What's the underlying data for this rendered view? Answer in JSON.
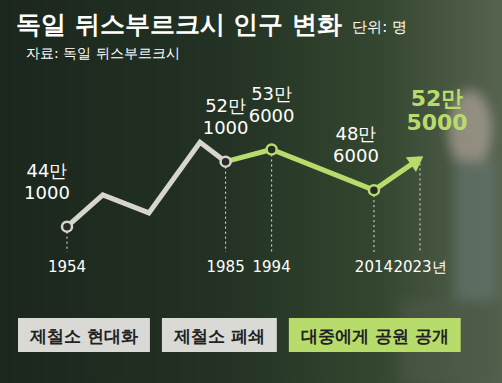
{
  "chart_data": {
    "type": "line",
    "title": "독일 뒤스부르크시 인구 변화",
    "subtitle": "단위: 명",
    "source": "자료: 독일 뒤스부르크시",
    "x": [
      1954,
      1961,
      1970,
      1980,
      1985,
      1994,
      2014,
      2023
    ],
    "xlim": [
      1954,
      2023
    ],
    "xticks": [
      1954,
      1985,
      1994,
      2014,
      {
        "value": 2023,
        "label": "2023년"
      }
    ],
    "ylim": [
      400000,
      560000
    ],
    "tick_labels": "x",
    "grid": false,
    "data_labels": true,
    "marker": "circle",
    "series": [
      {
        "values": [
          441000,
          480000,
          458000,
          545000,
          521000,
          536000,
          486000,
          525000
        ],
        "value_labels": [
          "44만\n1000",
          null,
          null,
          null,
          "52만\n1000",
          "53만\n6000",
          "48만\n6000",
          "52만\n5000"
        ],
        "colors": [
          "#d6d6cc",
          "#d6d6cc",
          "#d6d6cc",
          "#d6d6cc",
          "#d6d6cc",
          "#b8dc6c",
          "#b8dc6c",
          "#b8dc6c"
        ]
      }
    ],
    "annotations": [
      {
        "x": 1954,
        "text": "제철소 현대화",
        "color": "#d9d9d6"
      },
      {
        "x": 1985,
        "text": "제철소 폐쇄",
        "color": "#d9d9d6"
      },
      {
        "x": 1994,
        "text": "대중에게 공원 공개",
        "color": "#b8dc6c"
      }
    ]
  }
}
